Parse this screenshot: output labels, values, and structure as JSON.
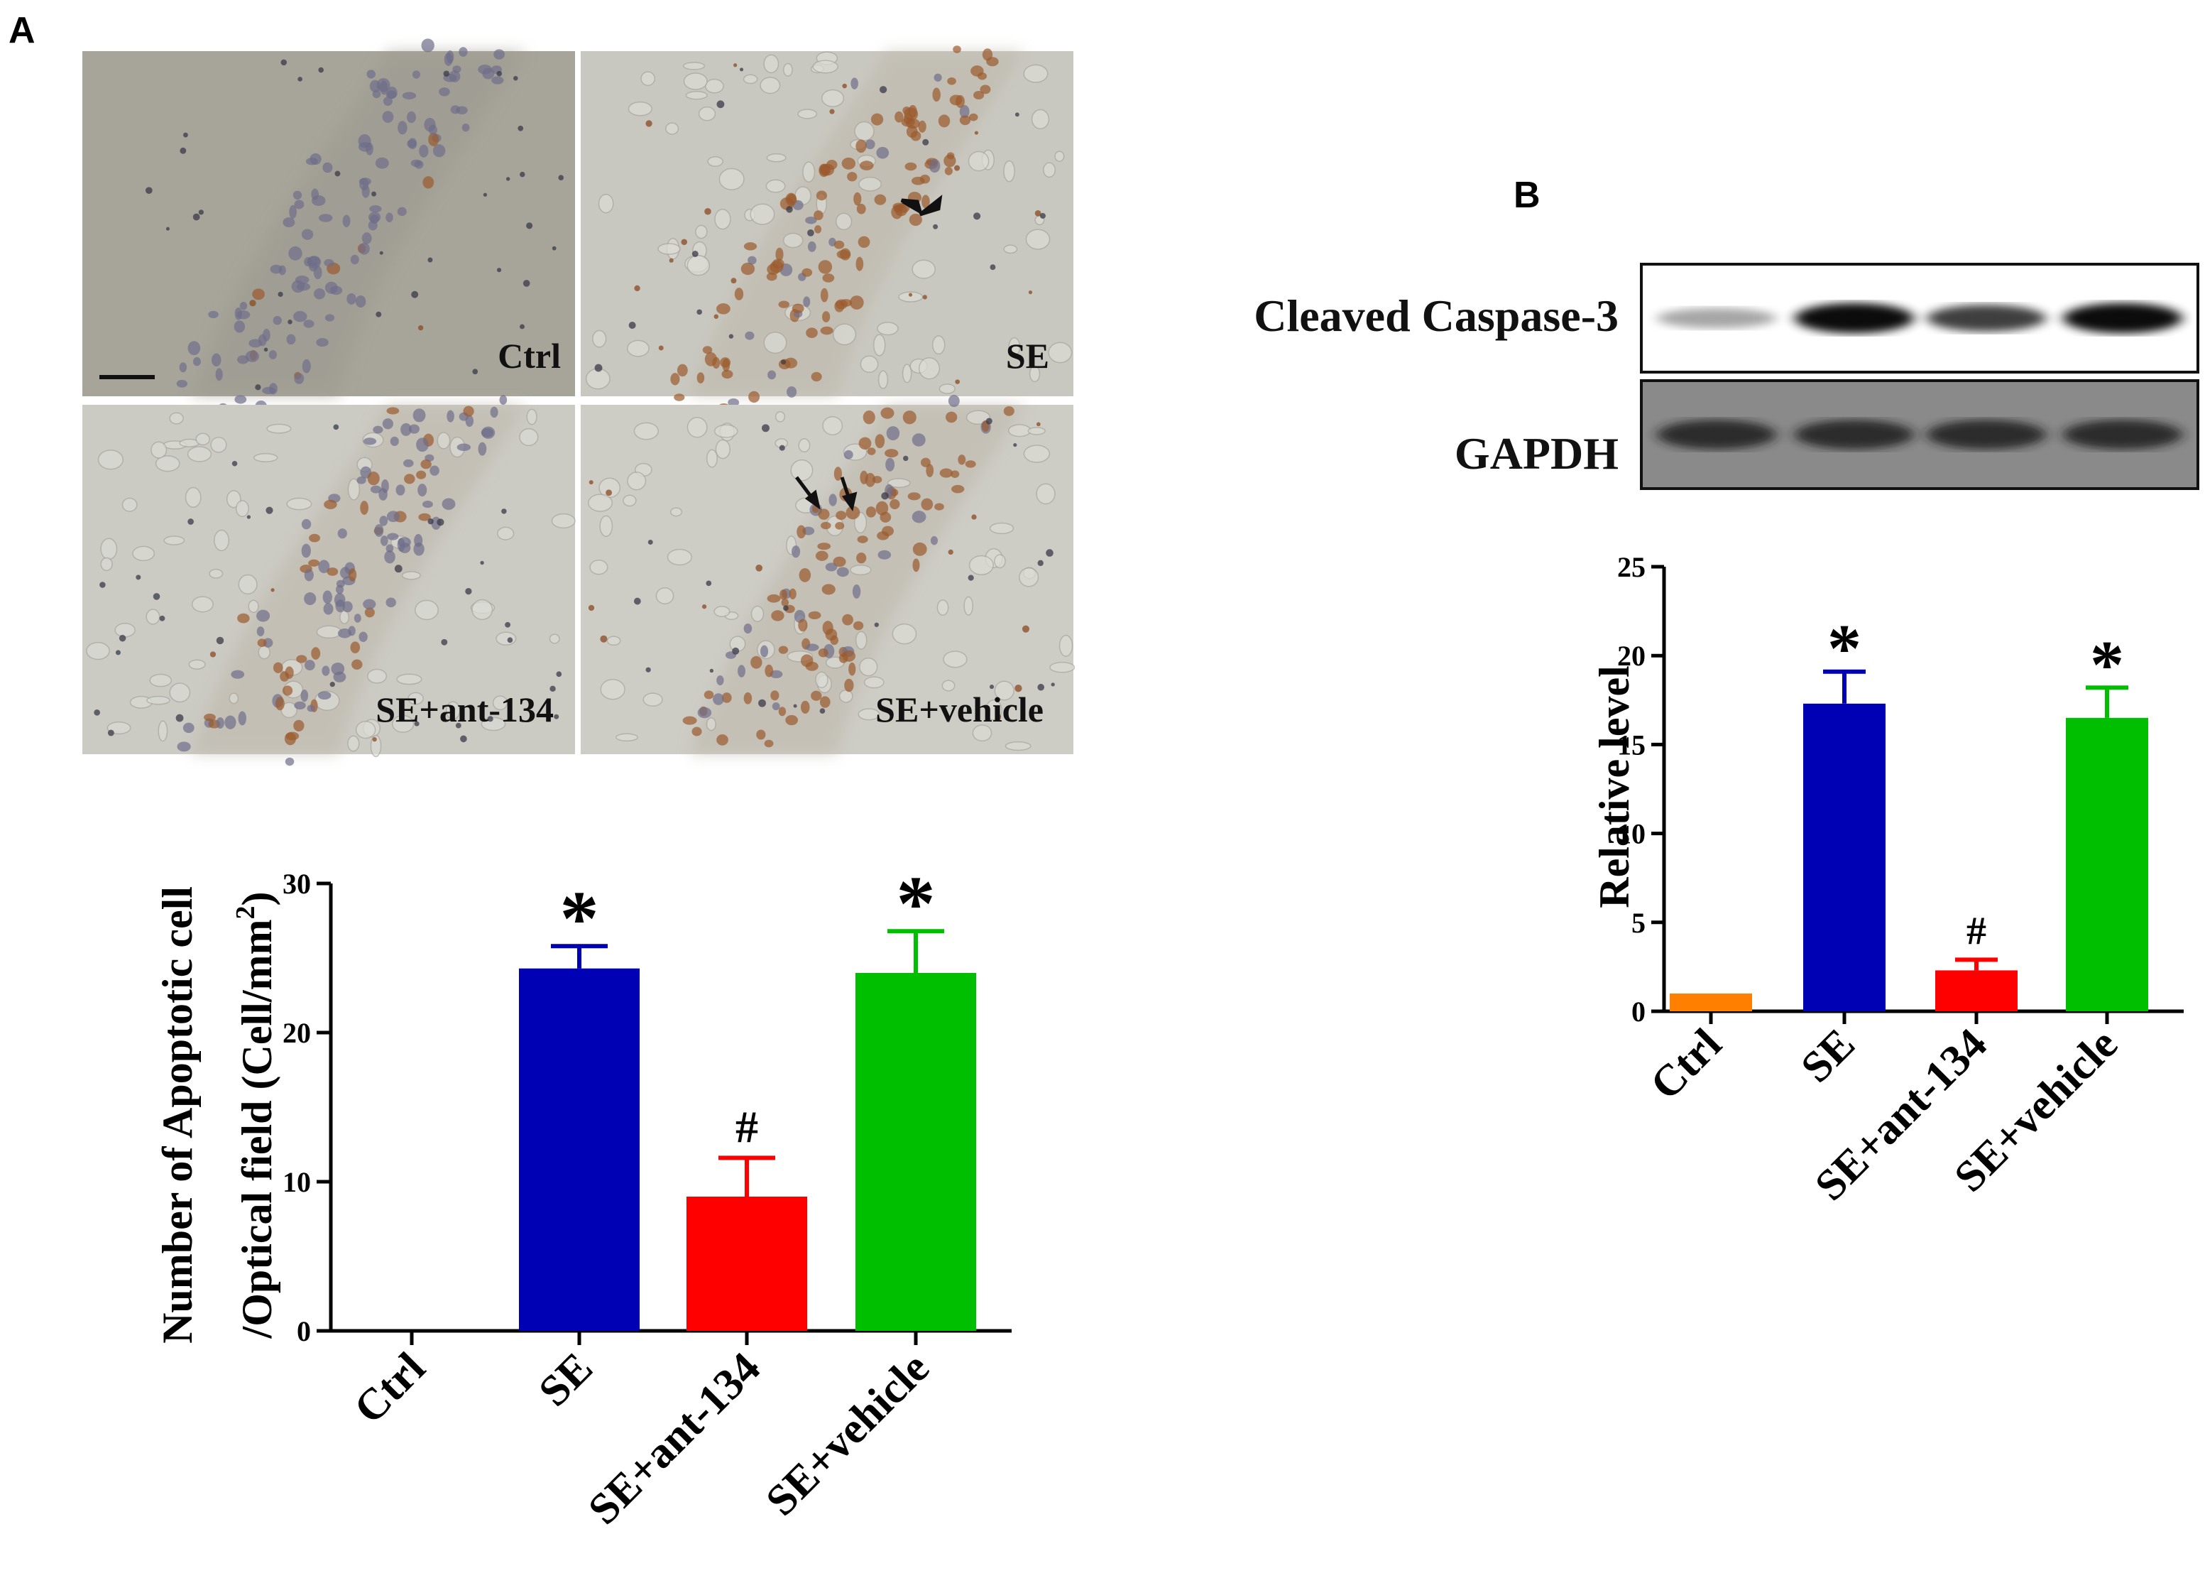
{
  "panels": {
    "a_letter": "A",
    "b_letter": "B"
  },
  "micrographs": {
    "labels": [
      "Ctrl",
      "SE",
      "SE+ant-134",
      "SE+vehicle"
    ],
    "stain_level": [
      0.05,
      0.8,
      0.25,
      0.7
    ],
    "has_arrows": [
      false,
      true,
      false,
      true
    ]
  },
  "western_blot": {
    "bands": [
      {
        "name": "Cleaved Caspase-3",
        "intensity": [
          0.35,
          0.95,
          0.75,
          0.95
        ]
      },
      {
        "name": "GAPDH",
        "intensity": [
          0.9,
          0.9,
          0.9,
          0.9
        ]
      }
    ]
  },
  "colors": {
    "Ctrl": "#ff7f00",
    "SE": "#0000b4",
    "SE+ant-134": "#ff0000",
    "SE+vehicle": "#00bf00"
  },
  "chart_data": [
    {
      "type": "bar",
      "categories": [
        "Ctrl",
        "SE",
        "SE+ant-134",
        "SE+vehicle"
      ],
      "values": [
        0,
        24.3,
        9,
        24
      ],
      "errors": [
        0,
        1.5,
        2.6,
        2.8
      ],
      "annotations": [
        "",
        "*",
        "#",
        "*"
      ],
      "ylabel_line1": "Number of Apoptotic cell",
      "ylabel_line2": "/Optical field (Cell/mm",
      "ylabel_sup": "2",
      "ylabel_end": ")",
      "ylim": [
        0,
        30
      ],
      "yticks": [
        0,
        10,
        20,
        30
      ],
      "xlabel": "",
      "grid": false
    },
    {
      "type": "bar",
      "categories": [
        "Ctrl",
        "SE",
        "SE+ant-134",
        "SE+vehicle"
      ],
      "values": [
        1,
        17.3,
        2.3,
        16.5
      ],
      "errors": [
        0,
        1.8,
        0.6,
        1.7
      ],
      "annotations": [
        "",
        "*",
        "#",
        "*"
      ],
      "ylabel": "Relative level",
      "ylim": [
        0,
        25
      ],
      "yticks": [
        0,
        5,
        10,
        15,
        20,
        25
      ],
      "xlabel": "",
      "grid": false
    }
  ]
}
